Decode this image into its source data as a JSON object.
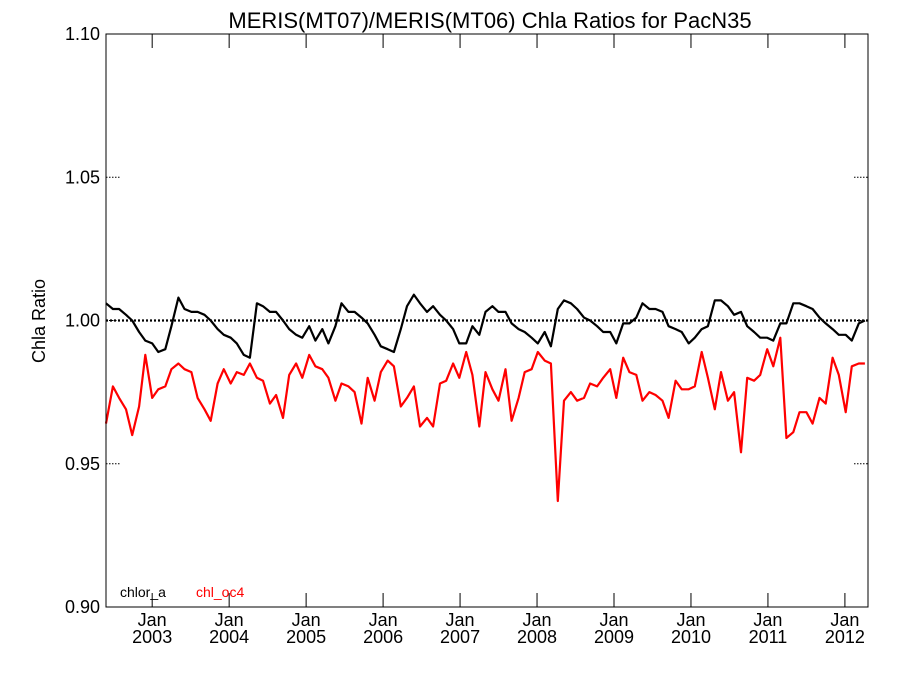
{
  "chart_data": {
    "type": "line",
    "title": "MERIS(MT07)/MERIS(MT06)  Chla Ratios for PacN35",
    "ylabel": "Chla Ratio",
    "xlabel": "",
    "ylim": [
      0.9,
      1.1
    ],
    "xlim": [
      2002.4,
      2012.3
    ],
    "yticks": [
      "0.90",
      "0.95",
      "1.00",
      "1.05",
      "1.10"
    ],
    "xticks": [
      {
        "top": "Jan",
        "bottom": "2003",
        "x": 2003.0
      },
      {
        "top": "Jan",
        "bottom": "2004",
        "x": 2004.0
      },
      {
        "top": "Jan",
        "bottom": "2005",
        "x": 2005.0
      },
      {
        "top": "Jan",
        "bottom": "2006",
        "x": 2006.0
      },
      {
        "top": "Jan",
        "bottom": "2007",
        "x": 2007.0
      },
      {
        "top": "Jan",
        "bottom": "2008",
        "x": 2008.0
      },
      {
        "top": "Jan",
        "bottom": "2009",
        "x": 2009.0
      },
      {
        "top": "Jan",
        "bottom": "2010",
        "x": 2010.0
      },
      {
        "top": "Jan",
        "bottom": "2011",
        "x": 2011.0
      },
      {
        "top": "Jan",
        "bottom": "2012",
        "x": 2012.0
      }
    ],
    "reference_line": 1.0,
    "grid": false,
    "legend_position": "bottom-left",
    "series": [
      {
        "name": "chlor_a",
        "color": "#000000",
        "x": [
          2002.4,
          2002.49,
          2002.57,
          2002.66,
          2002.74,
          2002.83,
          2002.91,
          2003.0,
          2003.08,
          2003.17,
          2003.25,
          2003.34,
          2003.42,
          2003.51,
          2003.59,
          2003.68,
          2003.76,
          2003.85,
          2003.93,
          2004.02,
          2004.1,
          2004.19,
          2004.27,
          2004.36,
          2004.44,
          2004.53,
          2004.61,
          2004.7,
          2004.78,
          2004.87,
          2004.95,
          2005.04,
          2005.12,
          2005.21,
          2005.29,
          2005.38,
          2005.46,
          2005.55,
          2005.63,
          2005.72,
          2005.8,
          2005.89,
          2005.97,
          2006.06,
          2006.14,
          2006.23,
          2006.31,
          2006.4,
          2006.48,
          2006.57,
          2006.65,
          2006.74,
          2006.82,
          2006.91,
          2006.99,
          2007.08,
          2007.16,
          2007.25,
          2007.33,
          2007.42,
          2007.5,
          2007.59,
          2007.67,
          2007.76,
          2007.84,
          2007.93,
          2008.01,
          2008.1,
          2008.18,
          2008.27,
          2008.35,
          2008.44,
          2008.52,
          2008.61,
          2008.69,
          2008.78,
          2008.86,
          2008.95,
          2009.03,
          2009.12,
          2009.2,
          2009.29,
          2009.37,
          2009.46,
          2009.54,
          2009.63,
          2009.71,
          2009.8,
          2009.88,
          2009.97,
          2010.05,
          2010.14,
          2010.22,
          2010.31,
          2010.39,
          2010.48,
          2010.56,
          2010.65,
          2010.73,
          2010.82,
          2010.9,
          2010.99,
          2011.07,
          2011.16,
          2011.24,
          2011.33,
          2011.41,
          2011.5,
          2011.58,
          2011.67,
          2011.75,
          2011.84,
          2011.92,
          2012.01,
          2012.09,
          2012.18,
          2012.26
        ],
        "y": [
          1.006,
          1.004,
          1.004,
          1.002,
          1.0,
          0.996,
          0.993,
          0.992,
          0.989,
          0.99,
          0.998,
          1.008,
          1.004,
          1.003,
          1.003,
          1.002,
          1.0,
          0.997,
          0.995,
          0.994,
          0.992,
          0.988,
          0.987,
          1.006,
          1.005,
          1.003,
          1.003,
          1.0,
          0.997,
          0.995,
          0.994,
          0.998,
          0.993,
          0.997,
          0.992,
          0.998,
          1.006,
          1.003,
          1.003,
          1.001,
          0.999,
          0.995,
          0.991,
          0.99,
          0.989,
          0.997,
          1.005,
          1.009,
          1.006,
          1.003,
          1.005,
          1.002,
          1.0,
          0.997,
          0.992,
          0.992,
          0.998,
          0.995,
          1.003,
          1.005,
          1.003,
          1.003,
          0.999,
          0.997,
          0.996,
          0.994,
          0.992,
          0.996,
          0.991,
          1.004,
          1.007,
          1.006,
          1.004,
          1.001,
          1.0,
          0.998,
          0.996,
          0.996,
          0.992,
          0.999,
          0.999,
          1.001,
          1.006,
          1.004,
          1.004,
          1.003,
          0.998,
          0.997,
          0.996,
          0.992,
          0.994,
          0.997,
          0.998,
          1.007,
          1.007,
          1.005,
          1.002,
          1.003,
          0.998,
          0.996,
          0.994,
          0.994,
          0.993,
          0.999,
          0.999,
          1.006,
          1.006,
          1.005,
          1.004,
          1.001,
          0.999,
          0.997,
          0.995,
          0.995,
          0.993,
          0.999,
          1.0
        ]
      },
      {
        "name": "chl_oc4",
        "color": "#ff0000",
        "x": [
          2002.4,
          2002.49,
          2002.57,
          2002.66,
          2002.74,
          2002.83,
          2002.91,
          2003.0,
          2003.08,
          2003.17,
          2003.25,
          2003.34,
          2003.42,
          2003.51,
          2003.59,
          2003.68,
          2003.76,
          2003.85,
          2003.93,
          2004.02,
          2004.1,
          2004.19,
          2004.27,
          2004.36,
          2004.44,
          2004.53,
          2004.61,
          2004.7,
          2004.78,
          2004.87,
          2004.95,
          2005.04,
          2005.12,
          2005.21,
          2005.29,
          2005.38,
          2005.46,
          2005.55,
          2005.63,
          2005.72,
          2005.8,
          2005.89,
          2005.97,
          2006.06,
          2006.14,
          2006.23,
          2006.31,
          2006.4,
          2006.48,
          2006.57,
          2006.65,
          2006.74,
          2006.82,
          2006.91,
          2006.99,
          2007.08,
          2007.16,
          2007.25,
          2007.33,
          2007.42,
          2007.5,
          2007.59,
          2007.67,
          2007.76,
          2007.84,
          2007.93,
          2008.01,
          2008.1,
          2008.18,
          2008.27,
          2008.35,
          2008.44,
          2008.52,
          2008.61,
          2008.69,
          2008.78,
          2008.86,
          2008.95,
          2009.03,
          2009.12,
          2009.2,
          2009.29,
          2009.37,
          2009.46,
          2009.54,
          2009.63,
          2009.71,
          2009.8,
          2009.88,
          2009.97,
          2010.05,
          2010.14,
          2010.22,
          2010.31,
          2010.39,
          2010.48,
          2010.56,
          2010.65,
          2010.73,
          2010.82,
          2010.9,
          2010.99,
          2011.07,
          2011.16,
          2011.24,
          2011.33,
          2011.41,
          2011.5,
          2011.58,
          2011.67,
          2011.75,
          2011.84,
          2011.92,
          2012.01,
          2012.09,
          2012.18,
          2012.26
        ],
        "y": [
          0.964,
          0.977,
          0.973,
          0.969,
          0.96,
          0.97,
          0.988,
          0.973,
          0.976,
          0.977,
          0.983,
          0.985,
          0.983,
          0.982,
          0.973,
          0.969,
          0.965,
          0.978,
          0.983,
          0.978,
          0.982,
          0.981,
          0.985,
          0.98,
          0.979,
          0.971,
          0.974,
          0.966,
          0.981,
          0.985,
          0.98,
          0.988,
          0.984,
          0.983,
          0.98,
          0.972,
          0.978,
          0.977,
          0.975,
          0.964,
          0.98,
          0.972,
          0.982,
          0.986,
          0.984,
          0.97,
          0.973,
          0.977,
          0.963,
          0.966,
          0.963,
          0.978,
          0.979,
          0.985,
          0.98,
          0.989,
          0.981,
          0.963,
          0.982,
          0.976,
          0.972,
          0.983,
          0.965,
          0.973,
          0.982,
          0.983,
          0.989,
          0.986,
          0.985,
          0.937,
          0.972,
          0.975,
          0.972,
          0.973,
          0.978,
          0.977,
          0.98,
          0.983,
          0.973,
          0.987,
          0.982,
          0.981,
          0.972,
          0.975,
          0.974,
          0.972,
          0.966,
          0.979,
          0.976,
          0.976,
          0.977,
          0.989,
          0.98,
          0.969,
          0.982,
          0.972,
          0.975,
          0.954,
          0.98,
          0.979,
          0.981,
          0.99,
          0.984,
          0.994,
          0.959,
          0.961,
          0.968,
          0.968,
          0.964,
          0.973,
          0.971,
          0.987,
          0.981,
          0.968,
          0.984,
          0.985,
          0.985
        ]
      }
    ]
  }
}
